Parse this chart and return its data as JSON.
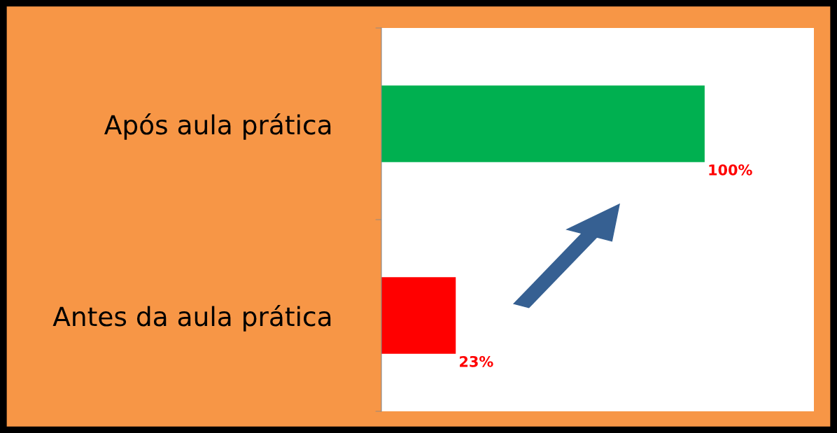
{
  "chart_data": {
    "type": "bar",
    "orientation": "horizontal",
    "categories": [
      "Após aula prática",
      "Antes da aula prática"
    ],
    "values": [
      100,
      23
    ],
    "colors": [
      "#00b050",
      "#ff0000"
    ],
    "value_labels": [
      "100%",
      "23%"
    ],
    "grid": false,
    "legend": false
  }
}
